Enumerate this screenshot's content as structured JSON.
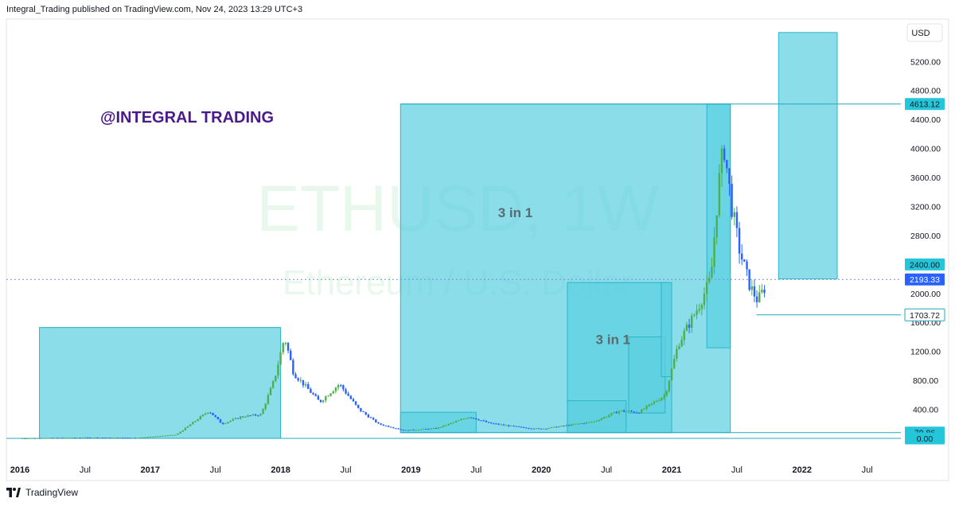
{
  "header": {
    "published": "Integral_Trading published on TradingView.com, Nov 24, 2023 13:29 UTC+3"
  },
  "footer": {
    "brand": "TradingView"
  },
  "watermark": {
    "symbol": "ETHUSD, 1W",
    "description": "Ethereum / U.S. Dollar"
  },
  "annotation": {
    "author_tag": "@INTEGRAL TRADING",
    "author_color": "#4a1a8c"
  },
  "colors": {
    "box_fill": "#5dd0e0",
    "box_stroke": "#2bb5c8",
    "line": "#21a9bf",
    "candle_up": "#4caf50",
    "candle_down": "#2962ff",
    "label_bg": "#26c6da",
    "label_bg_dark": "#2962ff"
  },
  "chart_data": {
    "type": "candlestick",
    "symbol": "ETHUSD",
    "timeframe": "1W",
    "currency": "USD",
    "x_range": [
      "2016-01",
      "2022-09"
    ],
    "ylim": [
      0,
      5600
    ],
    "y_ticks": [
      400,
      800,
      1200,
      1600,
      2000,
      2400,
      2800,
      3200,
      3600,
      4000,
      4400,
      4800,
      5200
    ],
    "y_tick_labels": [
      "400.00",
      "800.00",
      "1200.00",
      "1600.00",
      "2000.00",
      "2400.00",
      "2800.00",
      "3200.00",
      "3600.00",
      "4000.00",
      "4400.00",
      "4800.00",
      "5200.00"
    ],
    "x_ticks": [
      {
        "t": 2016.0,
        "label": "2016",
        "bold": true
      },
      {
        "t": 2016.5,
        "label": "Jul",
        "bold": false
      },
      {
        "t": 2017.0,
        "label": "2017",
        "bold": true
      },
      {
        "t": 2017.5,
        "label": "Jul",
        "bold": false
      },
      {
        "t": 2018.0,
        "label": "2018",
        "bold": true
      },
      {
        "t": 2018.5,
        "label": "Jul",
        "bold": false
      },
      {
        "t": 2019.0,
        "label": "2019",
        "bold": true
      },
      {
        "t": 2019.5,
        "label": "Jul",
        "bold": false
      },
      {
        "t": 2020.0,
        "label": "2020",
        "bold": true
      },
      {
        "t": 2020.5,
        "label": "Jul",
        "bold": false
      },
      {
        "t": 2021.0,
        "label": "2021",
        "bold": true
      },
      {
        "t": 2021.5,
        "label": "Jul",
        "bold": false
      },
      {
        "t": 2022.0,
        "label": "2022",
        "bold": true
      },
      {
        "t": 2022.5,
        "label": "Jul",
        "bold": false
      }
    ],
    "price_path": [
      [
        2016.0,
        1
      ],
      [
        2016.5,
        12
      ],
      [
        2016.9,
        8
      ],
      [
        2017.2,
        50
      ],
      [
        2017.45,
        380
      ],
      [
        2017.55,
        200
      ],
      [
        2017.7,
        300
      ],
      [
        2017.85,
        330
      ],
      [
        2017.95,
        800
      ],
      [
        2018.03,
        1400
      ],
      [
        2018.1,
        900
      ],
      [
        2018.3,
        500
      ],
      [
        2018.45,
        750
      ],
      [
        2018.6,
        400
      ],
      [
        2018.75,
        200
      ],
      [
        2018.95,
        110
      ],
      [
        2019.2,
        140
      ],
      [
        2019.45,
        300
      ],
      [
        2019.6,
        210
      ],
      [
        2019.85,
        150
      ],
      [
        2020.0,
        130
      ],
      [
        2020.2,
        180
      ],
      [
        2020.4,
        230
      ],
      [
        2020.6,
        380
      ],
      [
        2020.75,
        360
      ],
      [
        2020.95,
        600
      ],
      [
        2021.05,
        1300
      ],
      [
        2021.2,
        1800
      ],
      [
        2021.3,
        2200
      ],
      [
        2021.36,
        3500
      ],
      [
        2021.4,
        4050
      ],
      [
        2021.46,
        3200
      ],
      [
        2021.52,
        2600
      ],
      [
        2021.6,
        2100
      ],
      [
        2021.66,
        1900
      ],
      [
        2021.72,
        2100
      ]
    ],
    "levels": [
      {
        "value": 4613.12,
        "label": "4613.12",
        "style": "cyan"
      },
      {
        "value": 2400.0,
        "label": "2400.00",
        "style": "cyan"
      },
      {
        "value": 2193.33,
        "label": "2193.33",
        "style": "blue"
      },
      {
        "value": 1703.72,
        "label": "1703.72",
        "style": "outline"
      },
      {
        "value": 79.86,
        "label": "79.86",
        "style": "cyan"
      },
      {
        "value": 0.0,
        "label": "0.00",
        "style": "cyan"
      }
    ],
    "boxes": [
      {
        "t0": 2016.15,
        "t1": 2018.0,
        "p0": 0,
        "p1": 1530
      },
      {
        "t0": 2018.92,
        "t1": 2021.45,
        "p0": 79.86,
        "p1": 4613.12
      },
      {
        "t0": 2018.92,
        "t1": 2019.5,
        "p0": 79.86,
        "p1": 360
      },
      {
        "t0": 2020.2,
        "t1": 2021.0,
        "p0": 79.86,
        "p1": 2150
      },
      {
        "t0": 2020.2,
        "t1": 2020.65,
        "p0": 79.86,
        "p1": 520
      },
      {
        "t0": 2020.67,
        "t1": 2020.95,
        "p0": 350,
        "p1": 1400
      },
      {
        "t0": 2020.92,
        "t1": 2021.0,
        "p0": 850,
        "p1": 2150
      },
      {
        "t0": 2021.27,
        "t1": 2021.45,
        "p0": 1250,
        "p1": 4613.12
      },
      {
        "t0": 2021.82,
        "t1": 2022.27,
        "p0": 2200,
        "p1": 5600
      }
    ],
    "labels": [
      {
        "text": "3 in 1",
        "t": 2019.8,
        "p": 3050
      },
      {
        "text": "3 in 1",
        "t": 2020.55,
        "p": 1300
      }
    ]
  }
}
